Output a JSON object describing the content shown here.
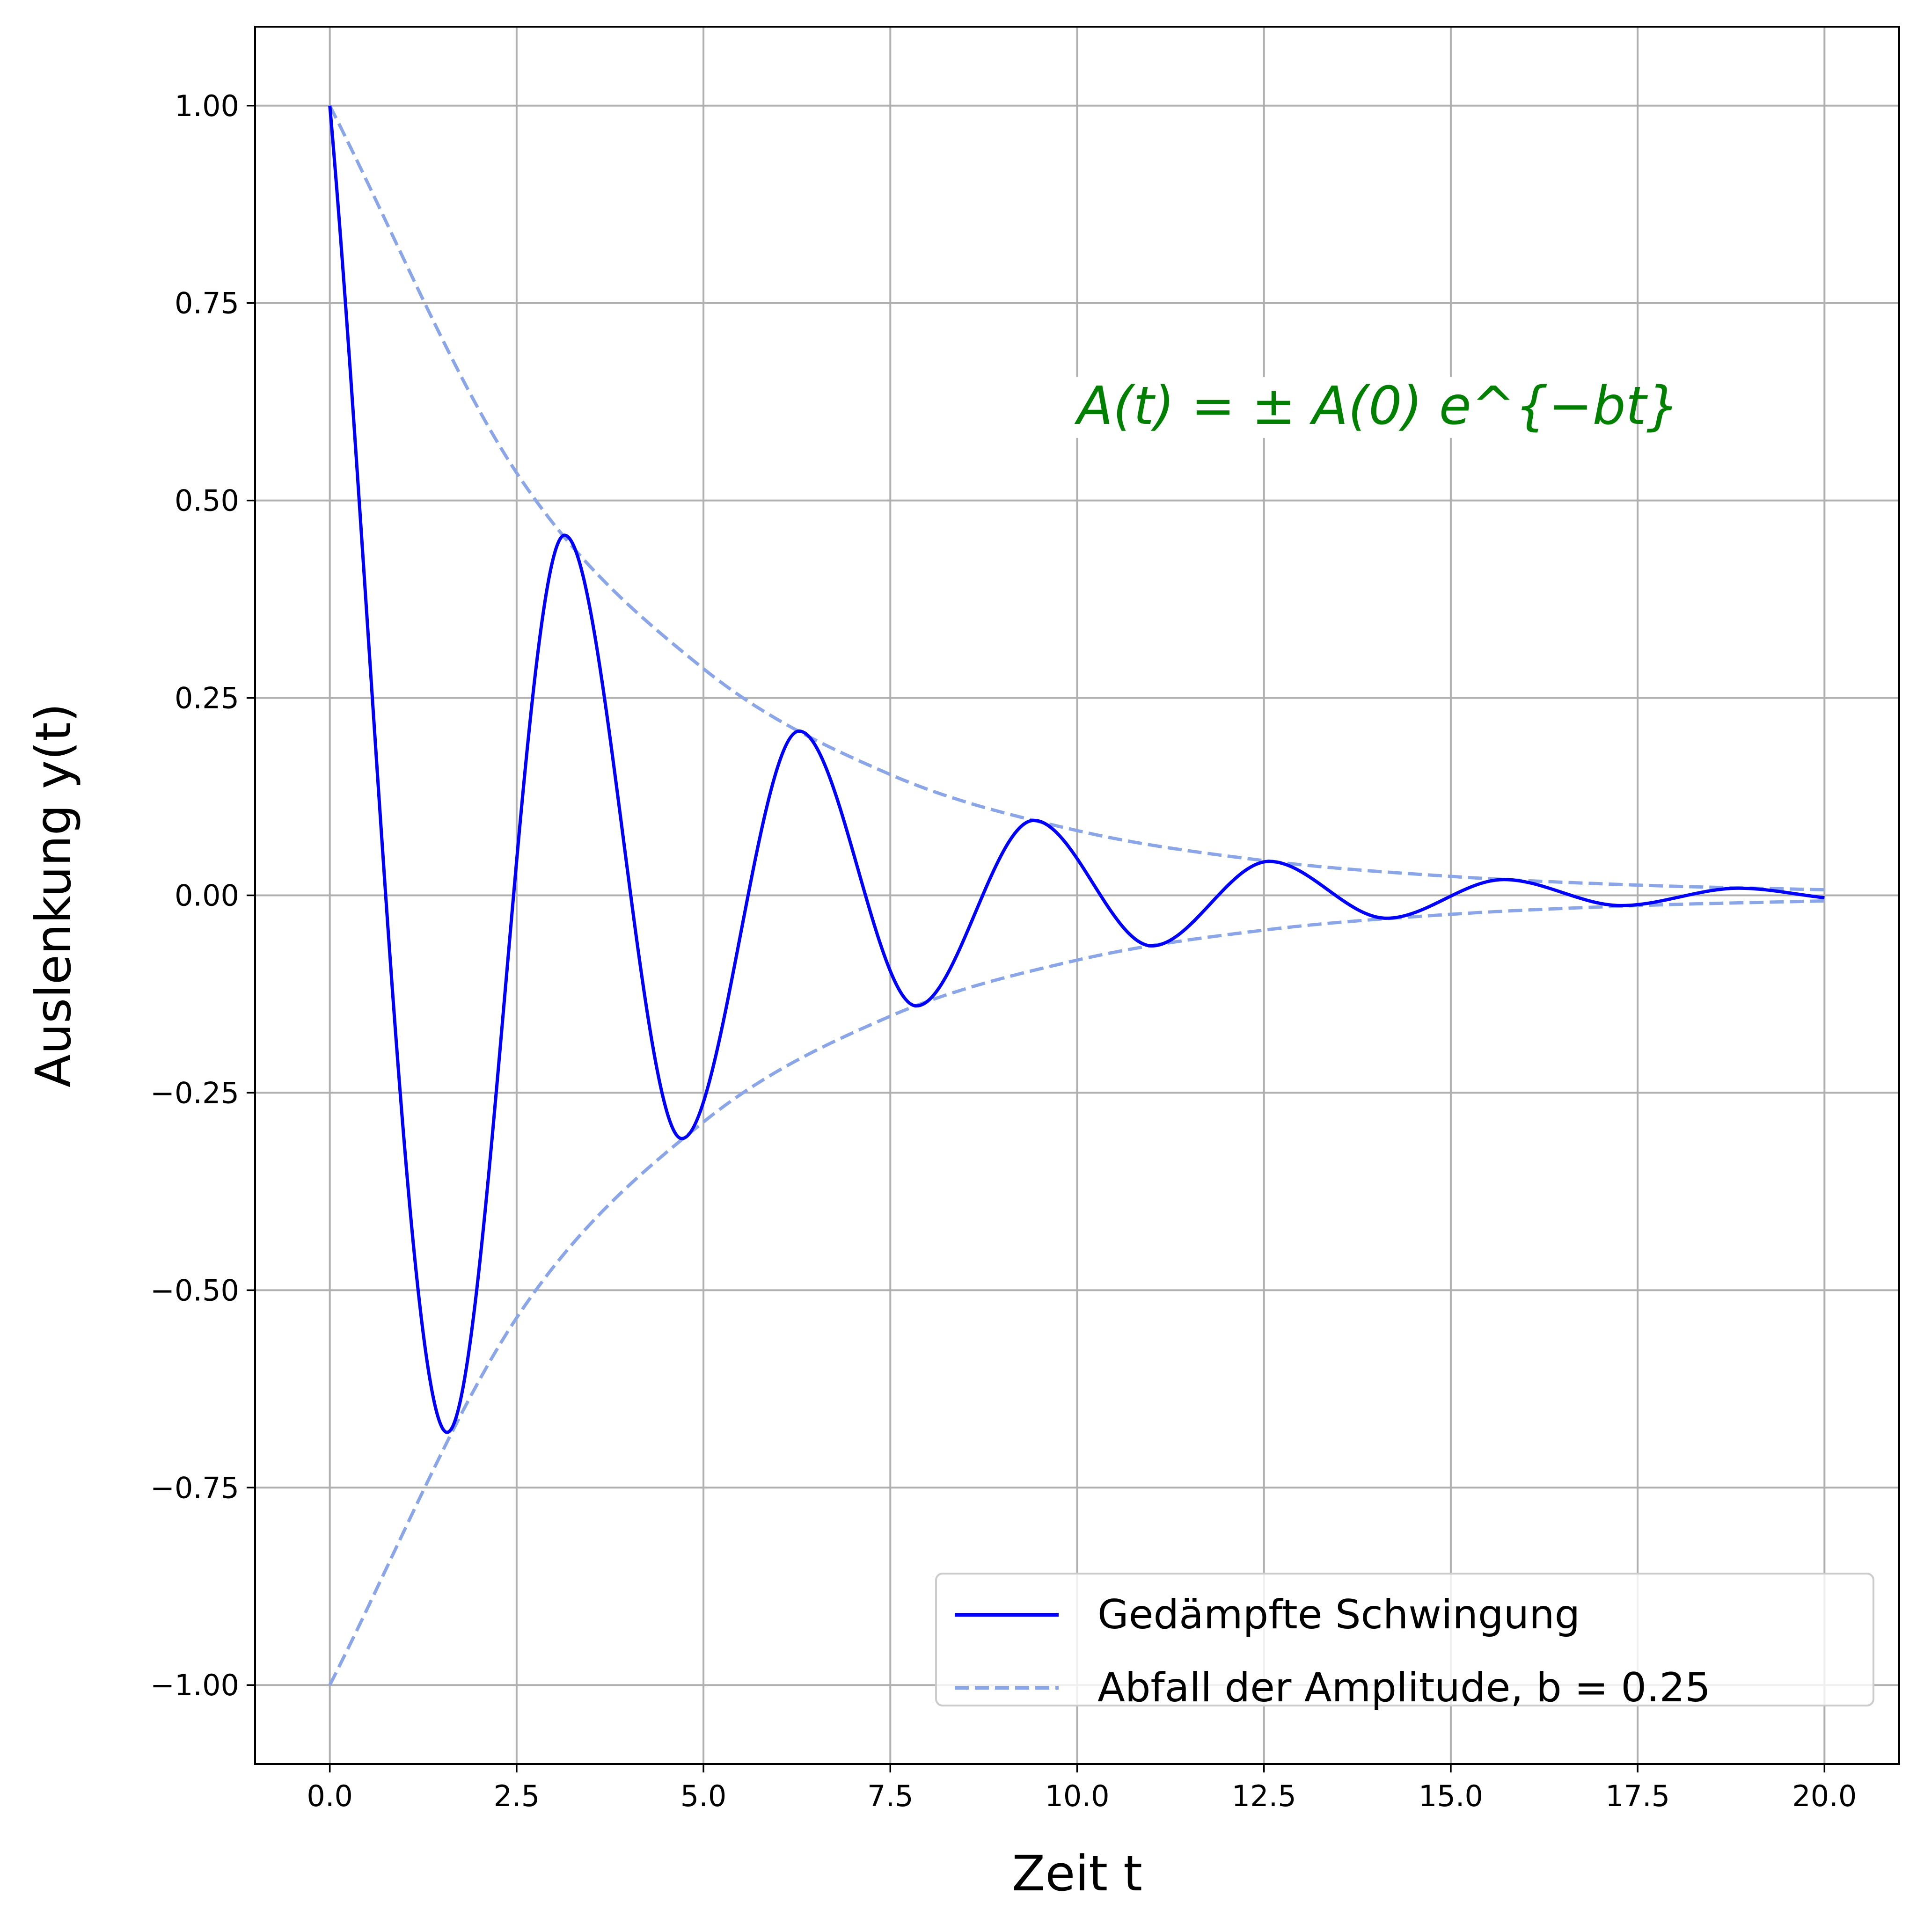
{
  "chart_data": {
    "type": "line",
    "title": "",
    "xlabel": "Zeit t",
    "ylabel": "Auslenkung y(t)",
    "xlim": [
      -1,
      21
    ],
    "ylim": [
      -1.1,
      1.1
    ],
    "x_ticks": [
      0.0,
      2.5,
      5.0,
      7.5,
      10.0,
      12.5,
      15.0,
      17.5,
      20.0
    ],
    "x_tick_labels": [
      "0.0",
      "2.5",
      "5.0",
      "7.5",
      "10.0",
      "12.5",
      "15.0",
      "17.5",
      "20.0"
    ],
    "y_ticks": [
      1.0,
      0.75,
      0.5,
      0.25,
      0.0,
      -0.25,
      -0.5,
      -0.75,
      -1.0
    ],
    "y_tick_labels": [
      "1.00",
      "0.75",
      "0.50",
      "0.25",
      "0.00",
      "−0.25",
      "−0.50",
      "−0.75",
      "−1.00"
    ],
    "grid": true,
    "legend_position": "lower-right",
    "annotation": "A(t) = ± A(0) e^{−bt}",
    "series": [
      {
        "name": "Gedämpfte Schwingung",
        "color": "#0000ff",
        "style": "solid",
        "x": [
          0.0,
          1.57,
          3.14,
          4.71,
          6.28,
          7.85,
          9.42,
          11.0,
          12.57,
          14.14,
          15.71,
          17.28,
          18.85,
          20.0
        ],
        "y": [
          1.0,
          -0.68,
          0.456,
          -0.308,
          0.208,
          -0.14,
          0.095,
          -0.064,
          0.043,
          -0.029,
          0.02,
          -0.013,
          0.009,
          -0.003
        ]
      },
      {
        "name": "Abfall der Amplitude, b = 0.25",
        "color": "#8aa6e8",
        "style": "dashed",
        "x": [
          0.0,
          2.5,
          5.0,
          7.5,
          10.0,
          12.5,
          15.0,
          17.5,
          20.0
        ],
        "y": [
          1.0,
          0.535,
          0.287,
          0.153,
          0.082,
          0.044,
          0.024,
          0.013,
          0.007
        ]
      },
      {
        "name": "",
        "color": "#8aa6e8",
        "style": "dashed",
        "x": [
          0.0,
          2.5,
          5.0,
          7.5,
          10.0,
          12.5,
          15.0,
          17.5,
          20.0
        ],
        "y": [
          -1.0,
          -0.535,
          -0.287,
          -0.153,
          -0.082,
          -0.044,
          -0.024,
          -0.013,
          -0.007
        ]
      }
    ]
  }
}
